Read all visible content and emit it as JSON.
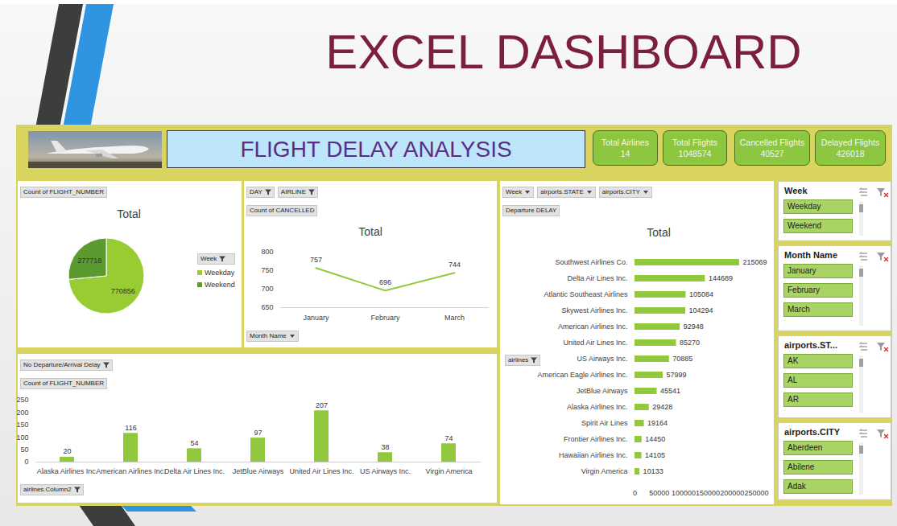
{
  "slide_title": "EXCEL DASHBOARD",
  "dashboard": {
    "header": "FLIGHT DELAY ANALYSIS",
    "kpis": [
      {
        "label": "Total Airlines",
        "value": 14
      },
      {
        "label": "Total Flights",
        "value": 1048574
      },
      {
        "label": "Cancelled Flights",
        "value": 40527
      },
      {
        "label": "Delayed Flights",
        "value": 426018
      }
    ],
    "slicers": [
      {
        "title": "Week",
        "items": [
          "Weekday",
          "Weekend"
        ]
      },
      {
        "title": "Month Name",
        "items": [
          "January",
          "February",
          "March"
        ]
      },
      {
        "title": "airports.ST...",
        "items": [
          "AK",
          "AL",
          "AR"
        ]
      },
      {
        "title": "airports.CITY",
        "items": [
          "Aberdeen",
          "Abilene",
          "Adak"
        ]
      }
    ]
  },
  "chart_data": [
    {
      "type": "pie",
      "title": "Total",
      "value_field": "Count of FLIGHT_NUMBER",
      "legend_title": "Week",
      "legend": "right",
      "categories": [
        "Weekday",
        "Weekend"
      ],
      "values": [
        770856,
        277718
      ],
      "colors": [
        "#99cc33",
        "#5b9a2e"
      ],
      "data_labels": true
    },
    {
      "type": "line",
      "title": "Total",
      "filter_fields": [
        "DAY",
        "AIRLINE"
      ],
      "value_field": "Count of CANCELLED",
      "axis_field": "Month Name",
      "categories": [
        "January",
        "February",
        "March"
      ],
      "values": [
        757,
        696,
        744
      ],
      "color": "#92c83e",
      "ylim": [
        650,
        800
      ],
      "yticks": [
        650,
        700,
        750,
        800
      ],
      "data_labels": true
    },
    {
      "type": "bar",
      "filter_fields": [
        "No Departure/Arrival Delay"
      ],
      "value_field": "Count of FLIGHT_NUMBER",
      "axis_field": "airlines.Column2",
      "categories": [
        "Alaska Airlines Inc.",
        "American Airlines Inc.",
        "Delta Air Lines Inc.",
        "JetBlue Airways",
        "United Air Lines Inc.",
        "US Airways Inc.",
        "Virgin America"
      ],
      "values": [
        20,
        116,
        54,
        97,
        207,
        38,
        74
      ],
      "color": "#92c83e",
      "ylim": [
        0,
        250
      ],
      "yticks": [
        0,
        50,
        100,
        150,
        200,
        250
      ],
      "data_labels": true
    },
    {
      "type": "bar",
      "orientation": "horizontal",
      "title": "Total",
      "filter_fields": [
        "Week",
        "airports.STATE",
        "airports.CITY"
      ],
      "value_field": "Departure DELAY",
      "axis_field": "airlines",
      "categories": [
        "Southwest Airlines Co.",
        "Delta Air Lines Inc.",
        "Atlantic Southeast Airlines",
        "Skywest Airlines Inc.",
        "American Airlines Inc.",
        "United Air Lines Inc.",
        "US Airways Inc.",
        "American Eagle Airlines Inc.",
        "JetBlue Airways",
        "Alaska Airlines Inc.",
        "Spirit Air Lines",
        "Frontier Airlines Inc.",
        "Hawaiian Airlines Inc.",
        "Virgin America"
      ],
      "values": [
        215069,
        144689,
        105084,
        104294,
        92948,
        85270,
        70885,
        57999,
        45541,
        29428,
        19164,
        14450,
        14105,
        10133
      ],
      "color": "#92c83e",
      "xlim": [
        0,
        250000
      ],
      "xticks": [
        0,
        50000,
        100000,
        150000,
        200000,
        250000
      ],
      "data_labels": true
    }
  ]
}
